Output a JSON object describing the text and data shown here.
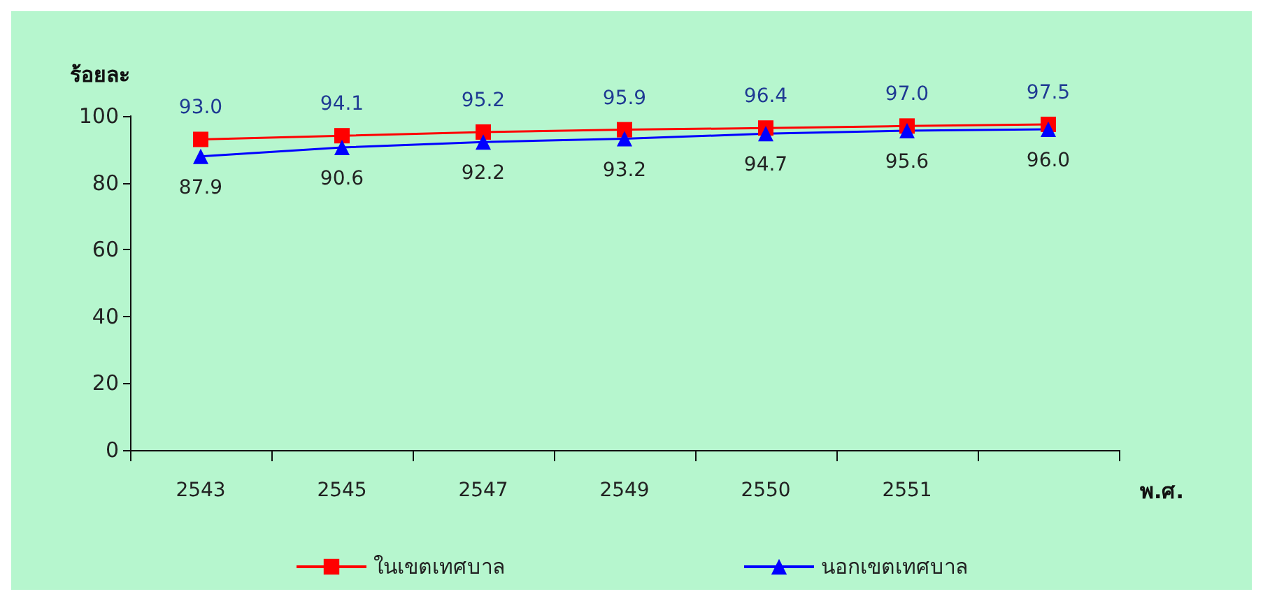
{
  "chart_data": {
    "type": "line",
    "xlabel": "พ.ศ.",
    "ylabel": "ร้อยละ",
    "categories": [
      "2543",
      "2545",
      "2547",
      "2549",
      "2550",
      "2551",
      null
    ],
    "series": [
      {
        "name": "ในเขตเทศบาล",
        "color": "#ff0000",
        "marker": "square",
        "values": [
          93.0,
          94.1,
          95.2,
          95.9,
          96.4,
          97.0,
          97.5
        ],
        "value_labels": [
          "93.0",
          "94.1",
          "95.2",
          "95.9",
          "96.4",
          "97.0",
          "97.5"
        ]
      },
      {
        "name": "นอกเขตเทศบาล",
        "color": "#0000ff",
        "marker": "triangle",
        "values": [
          87.9,
          90.6,
          92.2,
          93.2,
          94.7,
          95.6,
          96.0
        ],
        "value_labels": [
          "87.9",
          "90.6",
          "92.2",
          "93.2",
          "94.7",
          "95.6",
          "96.0"
        ]
      }
    ],
    "ylim": [
      0,
      100
    ],
    "yticks": [
      0,
      20,
      40,
      60,
      80,
      100
    ],
    "grid": false,
    "legend": "bottom",
    "line_style": "solid"
  }
}
